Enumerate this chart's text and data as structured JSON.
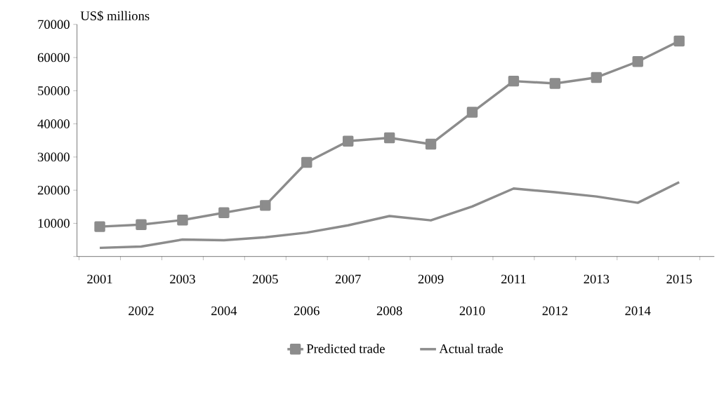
{
  "chart_data": {
    "type": "line",
    "ylabel": "US$ millions",
    "categories": [
      "2001",
      "2002",
      "2003",
      "2004",
      "2005",
      "2006",
      "2007",
      "2008",
      "2009",
      "2010",
      "2011",
      "2012",
      "2013",
      "2014",
      "2015"
    ],
    "series": [
      {
        "name": "Predicted trade",
        "color": "#8c8c8c",
        "marker": "square",
        "values": [
          9000,
          9600,
          11000,
          13200,
          15400,
          28400,
          34800,
          35800,
          33900,
          43500,
          52900,
          52200,
          54000,
          58800,
          65000
        ]
      },
      {
        "name": "Actual trade",
        "color": "#8c8c8c",
        "marker": "none",
        "values": [
          2600,
          3000,
          5100,
          4900,
          5800,
          7200,
          9400,
          12200,
          10900,
          15100,
          20500,
          19400,
          18100,
          16200,
          22400
        ]
      }
    ],
    "ylim": [
      0,
      70000
    ],
    "yticks": [
      {
        "value": 0,
        "label": null
      },
      10000,
      20000,
      30000,
      40000,
      50000,
      60000,
      70000
    ],
    "grid": false,
    "legend": "bottom"
  }
}
